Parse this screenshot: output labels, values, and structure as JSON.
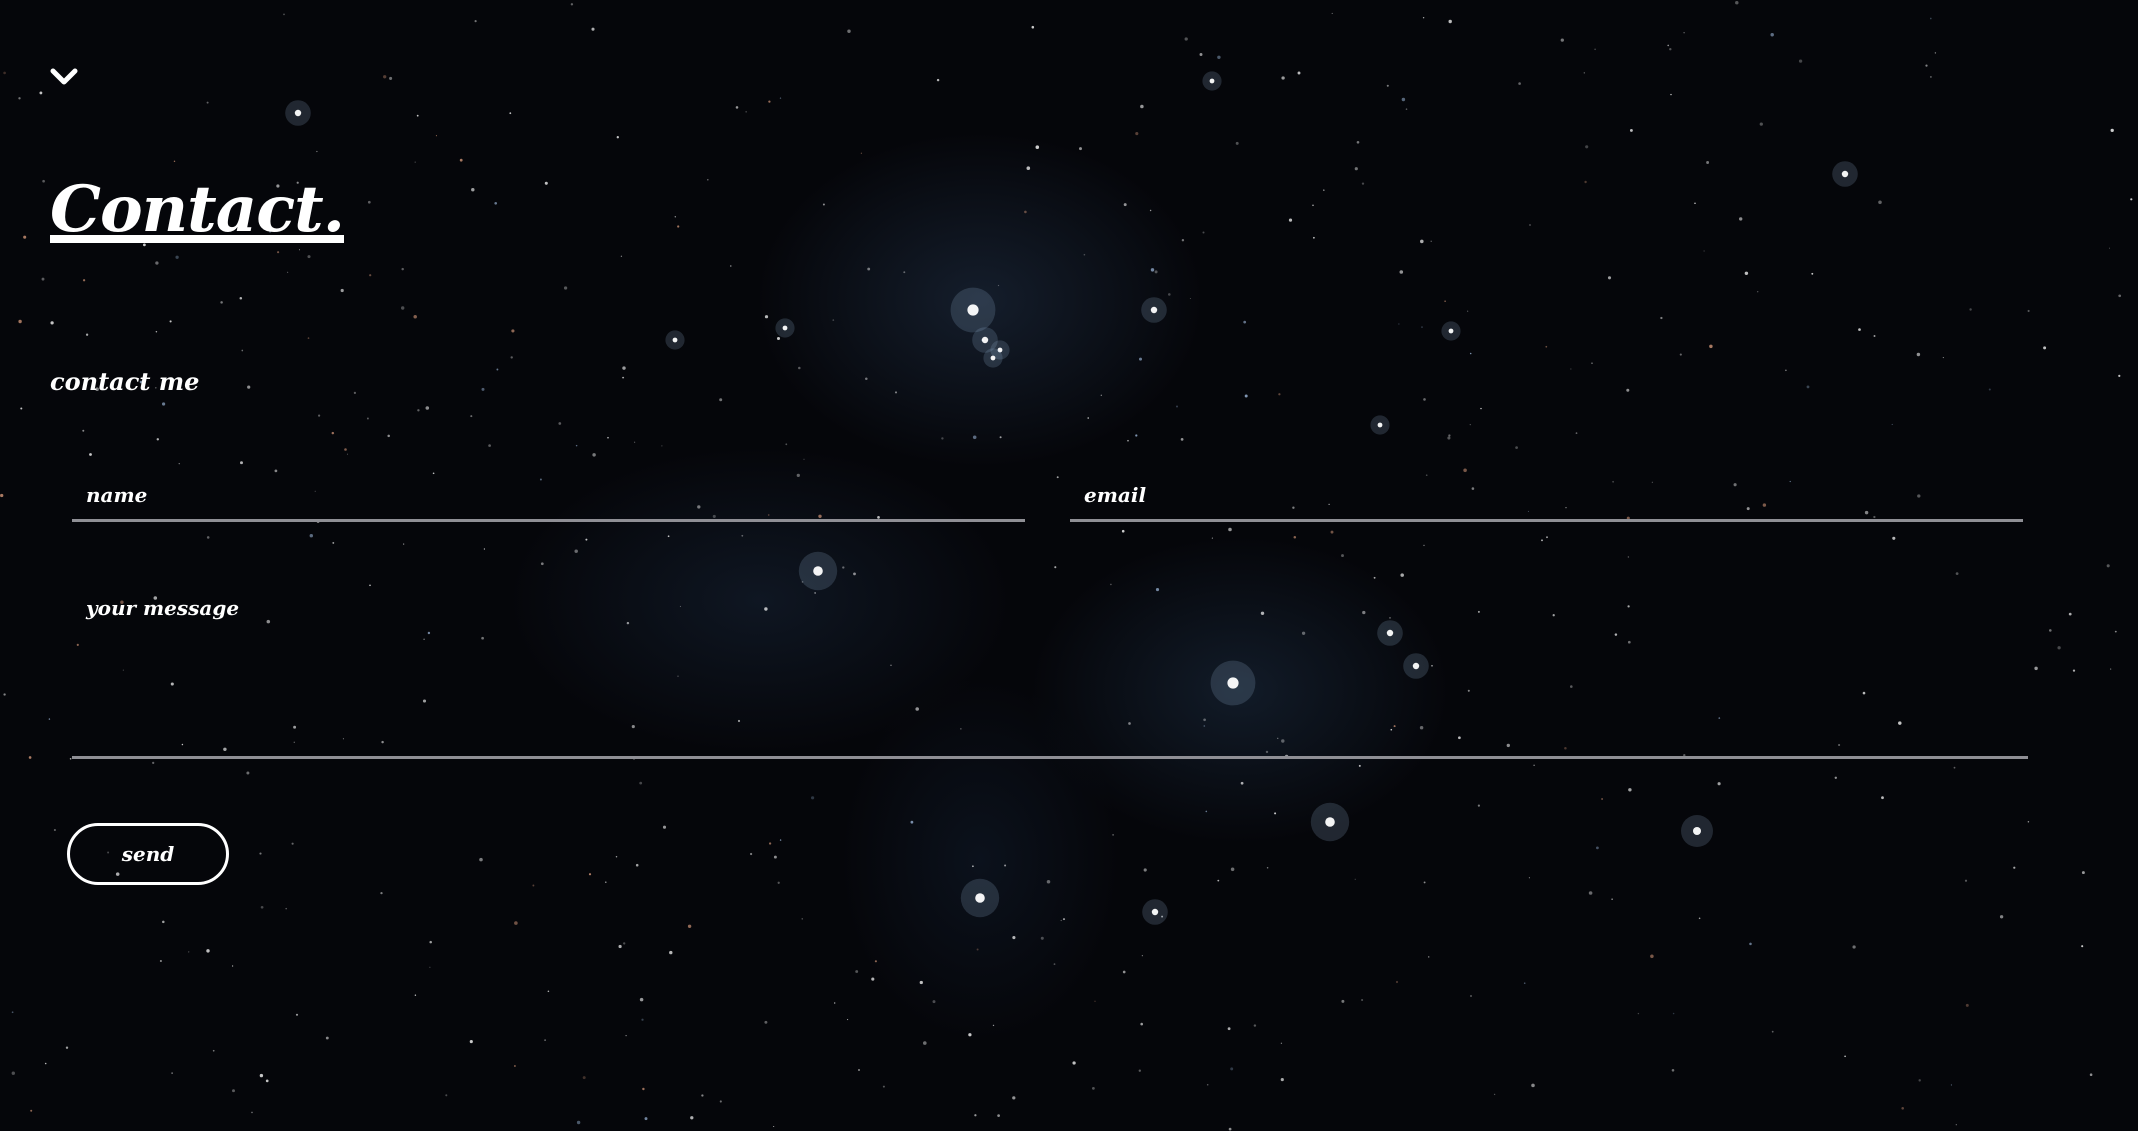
{
  "colors": {
    "background": "#05060a",
    "text": "#ffffff",
    "field_underline": "#8f8f95",
    "nebula": "#3c5a82"
  },
  "header": {
    "toggle_icon": "chevron-down-icon"
  },
  "contact": {
    "title": "Contact.",
    "subtitle": "contact me",
    "form": {
      "name_placeholder": "name",
      "email_placeholder": "email",
      "message_placeholder": "your message",
      "send_label": "send"
    }
  }
}
